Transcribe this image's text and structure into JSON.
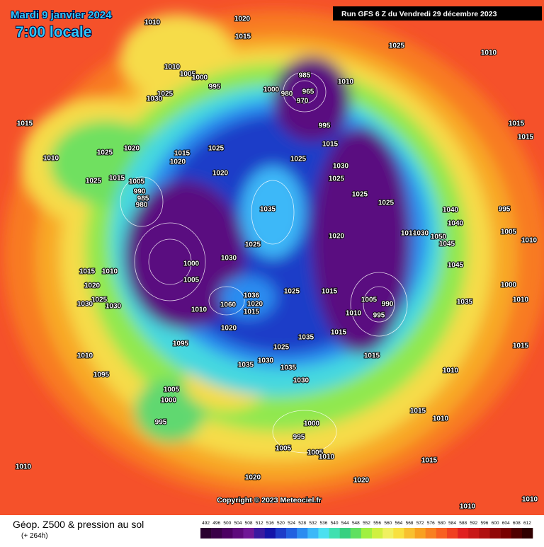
{
  "header": {
    "date": "Mardi 9 janvier 2024",
    "time": "7:00 locale",
    "run": "Run GFS 6 Z du Vendredi 29 décembre 2023"
  },
  "footer": {
    "copyright": "Copyright © 2023 Meteociel.fr",
    "product": "Géop. Z500 & pression au sol",
    "lead": "(+ 264h)"
  },
  "pressure_labels": [
    "1010",
    "1020",
    "1015",
    "1025",
    "1010",
    "1010",
    "1005",
    "1000",
    "995",
    "985",
    "1010",
    "1000",
    "980",
    "965",
    "970",
    "1025",
    "1030",
    "1015",
    "995",
    "1015",
    "1015",
    "1025",
    "1020",
    "1010",
    "1015",
    "1020",
    "1025",
    "1015",
    "1025",
    "1030",
    "1020",
    "1015",
    "1025",
    "1025",
    "1025",
    "1025",
    "1005",
    "990",
    "985",
    "980",
    "1035",
    "1040",
    "995",
    "1040",
    "1010",
    "1030",
    "1050",
    "1020",
    "1045",
    "1005",
    "1010",
    "1025",
    "1030",
    "1000",
    "1045",
    "1015",
    "1010",
    "1005",
    "1020",
    "1000",
    "1015",
    "1025",
    "1036",
    "1025",
    "1035",
    "1010",
    "1030",
    "1030",
    "1060",
    "1020",
    "1010",
    "1015",
    "1005",
    "995",
    "990",
    "1010",
    "1020",
    "1015",
    "1035",
    "1095",
    "1025",
    "1015",
    "1015",
    "1010",
    "1030",
    "1035",
    "1035",
    "1095",
    "1030",
    "1010",
    "1005",
    "1000",
    "1015",
    "1010",
    "995",
    "1000",
    "995",
    "1005",
    "1005",
    "1010",
    "1015",
    "1010",
    "1020",
    "1020",
    "1010",
    "1010"
  ],
  "legend": {
    "scale": [
      {
        "value": 492,
        "color": "#2a0030"
      },
      {
        "value": 496,
        "color": "#3a0048"
      },
      {
        "value": 500,
        "color": "#4c0062"
      },
      {
        "value": 504,
        "color": "#5e0a7c"
      },
      {
        "value": 508,
        "color": "#701896"
      },
      {
        "value": 512,
        "color": "#3a1aa0"
      },
      {
        "value": 516,
        "color": "#1414a8"
      },
      {
        "value": 520,
        "color": "#1e3cc8"
      },
      {
        "value": 524,
        "color": "#2260e0"
      },
      {
        "value": 528,
        "color": "#2c8cf0"
      },
      {
        "value": 532,
        "color": "#3cb8f8"
      },
      {
        "value": 536,
        "color": "#4ce0f0"
      },
      {
        "value": 540,
        "color": "#40e0b0"
      },
      {
        "value": 544,
        "color": "#38d080"
      },
      {
        "value": 548,
        "color": "#60e060"
      },
      {
        "value": 552,
        "color": "#a0f040"
      },
      {
        "value": 556,
        "color": "#d0f040"
      },
      {
        "value": 560,
        "color": "#f0f060"
      },
      {
        "value": 564,
        "color": "#f8e040"
      },
      {
        "value": 568,
        "color": "#f8c030"
      },
      {
        "value": 572,
        "color": "#f8a020"
      },
      {
        "value": 576,
        "color": "#f88020"
      },
      {
        "value": 580,
        "color": "#f86020"
      },
      {
        "value": 584,
        "color": "#f04020"
      },
      {
        "value": 588,
        "color": "#e02020"
      },
      {
        "value": 592,
        "color": "#c81818"
      },
      {
        "value": 596,
        "color": "#b01010"
      },
      {
        "value": 600,
        "color": "#900808"
      },
      {
        "value": 604,
        "color": "#780000"
      },
      {
        "value": 608,
        "color": "#500000"
      },
      {
        "value": 612,
        "color": "#300000"
      }
    ]
  }
}
